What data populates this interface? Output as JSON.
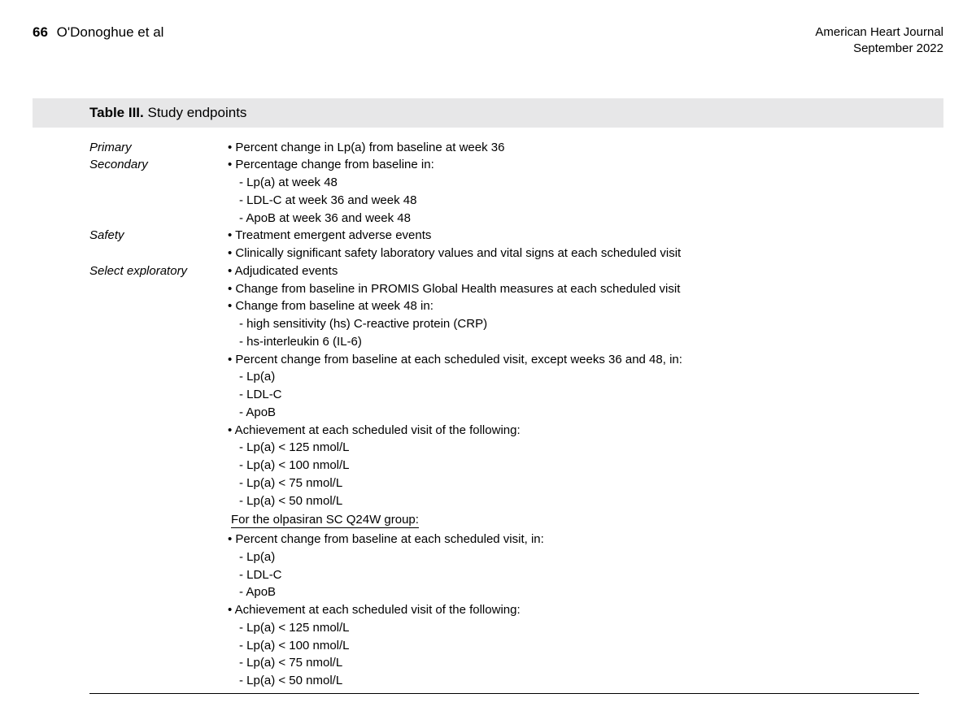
{
  "header": {
    "page_number": "66",
    "authors": "O'Donoghue et al",
    "journal": "American Heart Journal",
    "issue": "September 2022"
  },
  "table": {
    "label": "Table III.",
    "title": "Study endpoints"
  },
  "endpoints": {
    "primary": {
      "label": "Primary",
      "bullets": [
        {
          "text": "Percent change in Lp(a) from baseline at week 36"
        }
      ]
    },
    "secondary": {
      "label": "Secondary",
      "bullets": [
        {
          "text": "Percentage change from baseline in:",
          "subs": [
            "Lp(a) at week 48",
            "LDL-C at week 36 and week 48",
            "ApoB at week 36 and week 48"
          ]
        }
      ]
    },
    "safety": {
      "label": "Safety",
      "bullets": [
        {
          "text": "Treatment emergent adverse events"
        },
        {
          "text": "Clinically significant safety laboratory values and vital signs at each scheduled visit"
        }
      ]
    },
    "exploratory": {
      "label": "Select exploratory",
      "bullets": [
        {
          "text": "Adjudicated events"
        },
        {
          "text": "Change from baseline in PROMIS Global Health measures at each scheduled visit"
        },
        {
          "text": "Change from baseline at week 48 in:",
          "subs": [
            "high sensitivity (hs) C-reactive protein (CRP)",
            "hs-interleukin 6 (IL-6)"
          ]
        },
        {
          "text": "Percent change from baseline at each scheduled visit, except weeks 36 and 48, in:",
          "subs": [
            "Lp(a)",
            "LDL-C",
            "ApoB"
          ]
        },
        {
          "text": "Achievement at each scheduled visit of the following:",
          "subs": [
            "Lp(a) < 125 nmol/L",
            "Lp(a) < 100 nmol/L",
            "Lp(a) < 75 nmol/L",
            "Lp(a) < 50 nmol/L"
          ]
        }
      ],
      "group_heading": "For the olpasiran SC Q24W group:",
      "group_bullets": [
        {
          "text": "Percent change from baseline at each scheduled visit, in:",
          "subs": [
            "Lp(a)",
            "LDL-C",
            "ApoB"
          ]
        },
        {
          "text": "Achievement at each scheduled visit of the following:",
          "subs": [
            "Lp(a) < 125 nmol/L",
            "Lp(a) < 100 nmol/L",
            "Lp(a) < 75 nmol/L",
            "Lp(a) < 50 nmol/L"
          ]
        }
      ]
    }
  }
}
